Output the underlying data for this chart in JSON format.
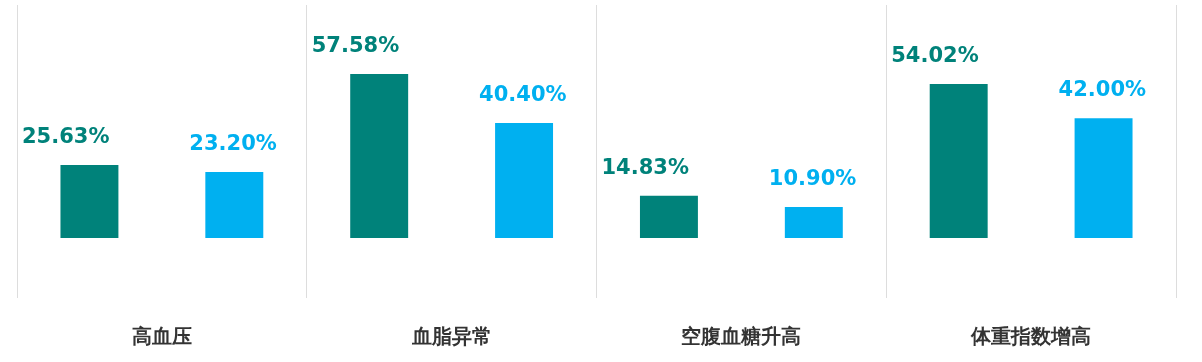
{
  "chart_data": {
    "type": "bar",
    "categories": [
      "高血压",
      "血脂异常",
      "空腹血糖升高",
      "体重指数增高"
    ],
    "series": [
      {
        "color": "#00827a",
        "values": [
          25.63,
          57.58,
          14.83,
          54.02
        ],
        "value_labels": [
          "25.63%",
          "57.58%",
          "14.83%",
          "54.02%"
        ]
      },
      {
        "color": "#00b0f0",
        "values": [
          23.2,
          40.4,
          10.9,
          42.0
        ],
        "value_labels": [
          "23.20%",
          "40.40%",
          "10.90%",
          "42.00%"
        ]
      }
    ],
    "grid": "x",
    "legend": false
  }
}
